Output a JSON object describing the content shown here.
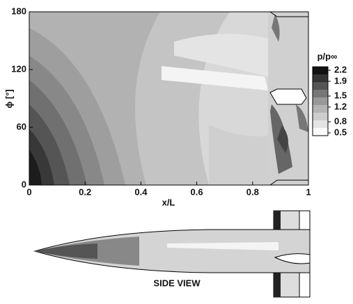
{
  "chart_data": {
    "type": "contour",
    "xlabel": "x/L",
    "ylabel": "ϕ [°]",
    "xlim": [
      0,
      1
    ],
    "xticks": [
      0,
      0.2,
      0.4,
      0.6,
      0.8,
      1
    ],
    "ylim": [
      0,
      180
    ],
    "yticks": [
      0,
      60,
      120,
      180
    ],
    "colorbar": {
      "title": "p/p∞",
      "lim": [
        0.5,
        2.2
      ],
      "ticks": [
        2.2,
        1.9,
        1.5,
        1.2,
        0.8,
        0.5
      ]
    },
    "annotation": "SIDE VIEW"
  }
}
